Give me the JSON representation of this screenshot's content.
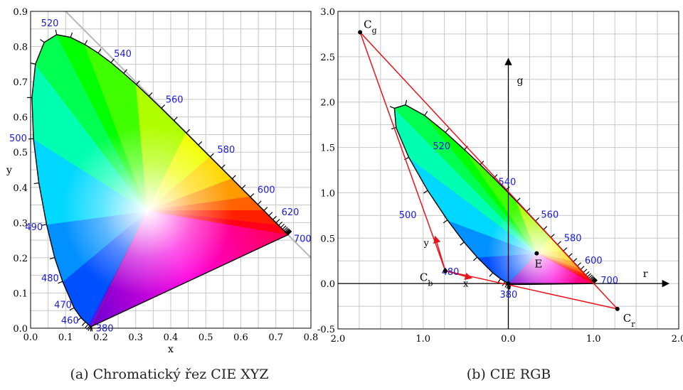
{
  "chart_data": [
    {
      "type": "scatter",
      "subtype": "cie-xyz-chromaticity-diagram",
      "caption": "(a) Chromatický řez CIE XYZ",
      "xlabel": "x",
      "ylabel": "y",
      "xlim": [
        0,
        0.8
      ],
      "ylim": [
        0,
        0.9
      ],
      "xticks": [
        "0.0",
        "0.1",
        "0.2",
        "0.3",
        "0.4",
        "0.5",
        "0.6",
        "0.7",
        "0.8"
      ],
      "yticks": [
        "0.0",
        "0.1",
        "0.2",
        "0.3",
        "0.4",
        "0.5",
        "0.6",
        "0.7",
        "0.8",
        "0.9"
      ],
      "grid": true,
      "locus": [
        [
          0.1741,
          0.005
        ],
        [
          0.1738,
          0.0049
        ],
        [
          0.1726,
          0.0048
        ],
        [
          0.1714,
          0.0051
        ],
        [
          0.1689,
          0.0069
        ],
        [
          0.1644,
          0.0109
        ],
        [
          0.1566,
          0.0177
        ],
        [
          0.144,
          0.0297
        ],
        [
          0.1241,
          0.0578
        ],
        [
          0.0913,
          0.1327
        ],
        [
          0.0687,
          0.2007
        ],
        [
          0.0454,
          0.295
        ],
        [
          0.0235,
          0.4127
        ],
        [
          0.0082,
          0.5384
        ],
        [
          0.0039,
          0.6548
        ],
        [
          0.0139,
          0.7502
        ],
        [
          0.0389,
          0.812
        ],
        [
          0.0743,
          0.8338
        ],
        [
          0.1142,
          0.8262
        ],
        [
          0.1547,
          0.8059
        ],
        [
          0.1929,
          0.7816
        ],
        [
          0.2296,
          0.7543
        ],
        [
          0.2658,
          0.7243
        ],
        [
          0.3016,
          0.6923
        ],
        [
          0.3373,
          0.6589
        ],
        [
          0.3731,
          0.6245
        ],
        [
          0.4087,
          0.5896
        ],
        [
          0.4441,
          0.5547
        ],
        [
          0.4788,
          0.5202
        ],
        [
          0.5125,
          0.4866
        ],
        [
          0.5448,
          0.4544
        ],
        [
          0.5752,
          0.4242
        ],
        [
          0.6029,
          0.3965
        ],
        [
          0.627,
          0.3725
        ],
        [
          0.6482,
          0.3514
        ],
        [
          0.6658,
          0.334
        ],
        [
          0.6801,
          0.3197
        ],
        [
          0.6915,
          0.3083
        ],
        [
          0.7006,
          0.2993
        ],
        [
          0.7079,
          0.292
        ],
        [
          0.714,
          0.2859
        ],
        [
          0.719,
          0.2809
        ],
        [
          0.723,
          0.277
        ],
        [
          0.726,
          0.274
        ],
        [
          0.7283,
          0.2717
        ],
        [
          0.73,
          0.27
        ],
        [
          0.7311,
          0.2689
        ],
        [
          0.732,
          0.268
        ],
        [
          0.7327,
          0.2673
        ],
        [
          0.7334,
          0.2666
        ],
        [
          0.734,
          0.266
        ],
        [
          0.7344,
          0.2656
        ],
        [
          0.7346,
          0.2654
        ],
        [
          0.7347,
          0.2653
        ]
      ],
      "white_point": [
        0.3333,
        0.3333
      ],
      "wavelength_labels": [
        {
          "nm": "380",
          "x": 0.1741,
          "y": 0.005
        },
        {
          "nm": "460",
          "x": 0.144,
          "y": 0.0297
        },
        {
          "nm": "470",
          "x": 0.1241,
          "y": 0.0578
        },
        {
          "nm": "480",
          "x": 0.0913,
          "y": 0.1327
        },
        {
          "nm": "490",
          "x": 0.0454,
          "y": 0.295
        },
        {
          "nm": "500",
          "x": 0.0082,
          "y": 0.5384
        },
        {
          "nm": "520",
          "x": 0.0743,
          "y": 0.8338
        },
        {
          "nm": "540",
          "x": 0.2296,
          "y": 0.7543
        },
        {
          "nm": "560",
          "x": 0.3731,
          "y": 0.6245
        },
        {
          "nm": "580",
          "x": 0.5125,
          "y": 0.4866
        },
        {
          "nm": "600",
          "x": 0.627,
          "y": 0.3725
        },
        {
          "nm": "620",
          "x": 0.6915,
          "y": 0.3083
        },
        {
          "nm": "700",
          "x": 0.7347,
          "y": 0.2653
        }
      ],
      "reference_line": [
        [
          0.1,
          0.9
        ],
        [
          0.8,
          0.2
        ]
      ]
    },
    {
      "type": "scatter",
      "subtype": "cie-rgb-chromaticity-diagram",
      "caption": "(b) CIE RGB",
      "xlabel": "r",
      "ylabel": "g",
      "xlim": [
        -2.0,
        2.0
      ],
      "ylim": [
        -0.5,
        3.0
      ],
      "xticks": [
        "2.0",
        "1.0",
        "0.0",
        "1.0",
        "2.0"
      ],
      "yticks": [
        "-0.5",
        "0.0",
        "0.5",
        "1.0",
        "1.5",
        "2.0",
        "2.5",
        "3.0"
      ],
      "grid": true,
      "points": [
        {
          "name": "C",
          "sub": "g",
          "r": -1.74,
          "g": 2.77
        },
        {
          "name": "C",
          "sub": "b",
          "r": -0.74,
          "g": 0.14
        },
        {
          "name": "C",
          "sub": "r",
          "r": 1.28,
          "g": -0.28
        },
        {
          "name": "E",
          "sub": "",
          "r": 0.333,
          "g": 0.333
        }
      ],
      "origin_point": [
        0,
        0
      ],
      "vectors": [
        {
          "label": "x",
          "from": [
            -0.74,
            0.14
          ],
          "to": [
            -0.43,
            0.06
          ]
        },
        {
          "label": "y",
          "from": [
            -0.74,
            0.14
          ],
          "to": [
            -0.86,
            0.52
          ]
        }
      ],
      "wavelength_labels": [
        {
          "nm": "380",
          "r": 0.0,
          "g": 0.0
        },
        {
          "nm": "480",
          "r": -0.45,
          "g": 0.08
        },
        {
          "nm": "500",
          "r": -1.05,
          "g": 0.72
        },
        {
          "nm": "520",
          "r": -0.87,
          "g": 1.45
        },
        {
          "nm": "540",
          "r": -0.1,
          "g": 1.07
        },
        {
          "nm": "560",
          "r": 0.35,
          "g": 0.71
        },
        {
          "nm": "580",
          "r": 0.62,
          "g": 0.45
        },
        {
          "nm": "600",
          "r": 0.83,
          "g": 0.22
        },
        {
          "nm": "700",
          "r": 1.0,
          "g": 0.0
        }
      ]
    }
  ]
}
